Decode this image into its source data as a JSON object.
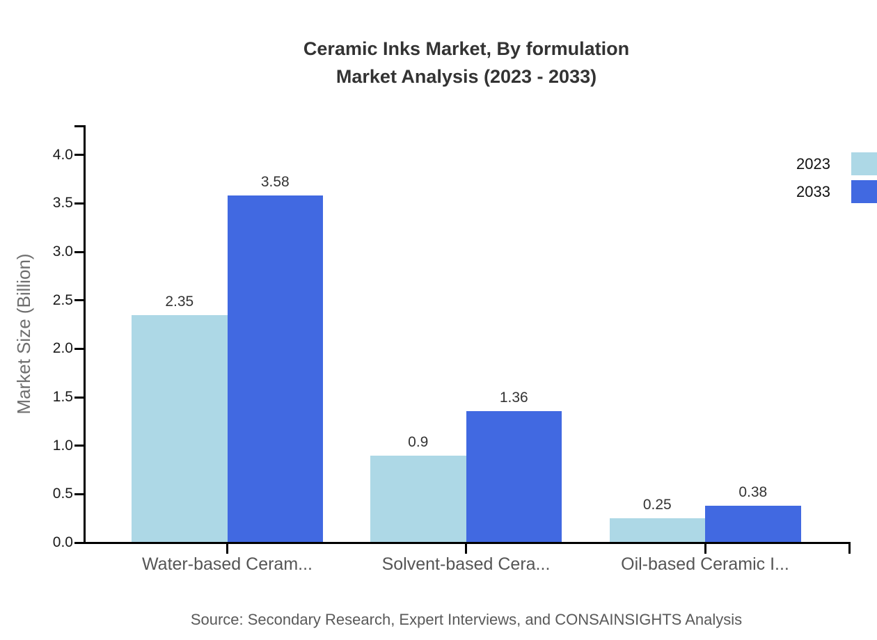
{
  "title": {
    "line1": "Ceramic Inks Market, By formulation",
    "line2": "Market Analysis (2023 - 2033)"
  },
  "legend": [
    {
      "label": "2023",
      "color": "#ADD8E6"
    },
    {
      "label": "2033",
      "color": "#4169E1"
    }
  ],
  "y_axis": {
    "label": "Market Size (Billion)",
    "ticks": [
      "0.0",
      "0.5",
      "1.0",
      "1.5",
      "2.0",
      "2.5",
      "3.0",
      "3.5",
      "4.0"
    ]
  },
  "source": "Source: Secondary Research, Expert Interviews, and CONSAINSIGHTS Analysis",
  "chart_data": {
    "type": "bar",
    "title": "Ceramic Inks Market, By formulation Market Analysis (2023 - 2033)",
    "categories": [
      "Water-based Ceram...",
      "Solvent-based Cera...",
      "Oil-based Ceramic I..."
    ],
    "series": [
      {
        "name": "2023",
        "color": "#ADD8E6",
        "values": [
          2.35,
          0.9,
          0.25
        ]
      },
      {
        "name": "2033",
        "color": "#4169E1",
        "values": [
          3.58,
          1.36,
          0.38
        ]
      }
    ],
    "xlabel": "",
    "ylabel": "Market Size (Billion)",
    "ylim": [
      0,
      4.0
    ],
    "ytick_step": 0.5,
    "grid": false,
    "legend_position": "top-right",
    "bar_value_labels": [
      "2.35",
      "3.58",
      "0.9",
      "1.36",
      "0.25",
      "0.38"
    ]
  }
}
